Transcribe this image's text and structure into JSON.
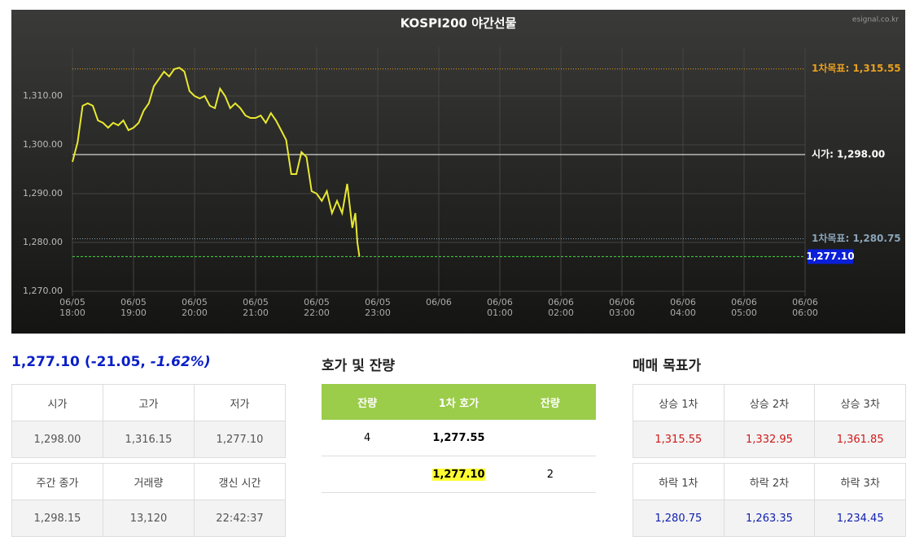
{
  "chart_data": {
    "type": "line",
    "title": "KOSPI200 야간선물",
    "brand": "esignal.co.kr",
    "x": [
      "06/05 18:00",
      "06/05 18:05",
      "06/05 18:10",
      "06/05 18:15",
      "06/05 18:20",
      "06/05 18:25",
      "06/05 18:30",
      "06/05 18:35",
      "06/05 18:40",
      "06/05 18:45",
      "06/05 18:50",
      "06/05 18:55",
      "06/05 19:00",
      "06/05 19:05",
      "06/05 19:10",
      "06/05 19:15",
      "06/05 19:20",
      "06/05 19:25",
      "06/05 19:30",
      "06/05 19:35",
      "06/05 19:40",
      "06/05 19:45",
      "06/05 19:50",
      "06/05 19:55",
      "06/05 20:00",
      "06/05 20:05",
      "06/05 20:10",
      "06/05 20:15",
      "06/05 20:20",
      "06/05 20:25",
      "06/05 20:30",
      "06/05 20:35",
      "06/05 20:40",
      "06/05 20:45",
      "06/05 20:50",
      "06/05 20:55",
      "06/05 21:00",
      "06/05 21:05",
      "06/05 21:10",
      "06/05 21:15",
      "06/05 21:20",
      "06/05 21:25",
      "06/05 21:30",
      "06/05 21:35",
      "06/05 21:40",
      "06/05 21:45",
      "06/05 21:50",
      "06/05 21:55",
      "06/05 22:00",
      "06/05 22:05",
      "06/05 22:10",
      "06/05 22:15",
      "06/05 22:20",
      "06/05 22:25",
      "06/05 22:30",
      "06/05 22:35",
      "06/05 22:38",
      "06/05 22:40",
      "06/05 22:42"
    ],
    "series": [
      {
        "color": "#e8e830",
        "values": [
          1296.5,
          1300.5,
          1308,
          1308.5,
          1308,
          1305,
          1304.5,
          1303.5,
          1304.5,
          1304,
          1305,
          1303,
          1303.5,
          1304.5,
          1307,
          1308.5,
          1312,
          1313.5,
          1315,
          1314,
          1315.5,
          1315.8,
          1315,
          1311,
          1310,
          1309.5,
          1310,
          1308,
          1307.5,
          1311.5,
          1310,
          1307.5,
          1308.5,
          1307.5,
          1306,
          1305.5,
          1305.5,
          1306,
          1304.5,
          1306.5,
          1305,
          1303,
          1301,
          1294,
          1294,
          1298.5,
          1297.5,
          1290.5,
          1290,
          1288.5,
          1290.5,
          1286,
          1288.5,
          1286,
          1292,
          1283,
          1286,
          1280,
          1277.1
        ]
      }
    ],
    "xlim": [
      "06/05 18:00",
      "06/06 06:00"
    ],
    "xticks": [
      "06/05 18:00",
      "06/05 19:00",
      "06/05 20:00",
      "06/05 21:00",
      "06/05 22:00",
      "06/05 23:00",
      "06/06 01:00",
      "06/06 02:00",
      "06/06 03:00",
      "06/06 04:00",
      "06/06 05:00",
      "06/06 06:00"
    ],
    "grid_xticks": [
      "06/06 00:00"
    ],
    "xtick_labels_extra": [
      "06/06"
    ],
    "ylim": [
      1270,
      1320
    ],
    "yticks": [
      {
        "value": 1270,
        "label": "1,270.00"
      },
      {
        "value": 1280,
        "label": "1,280.00"
      },
      {
        "value": 1290,
        "label": "1,290.00"
      },
      {
        "value": 1300,
        "label": "1,300.00"
      },
      {
        "value": 1310,
        "label": "1,310.00"
      }
    ],
    "grid": true,
    "reference_lines": [
      {
        "label": "1차목표: 1,315.55",
        "value": 1315.55,
        "color": "#e8a020",
        "style": "dotted"
      },
      {
        "label": "시가: 1,298.00",
        "value": 1298,
        "color": "#ffffff",
        "style": "solid"
      },
      {
        "label": "1차목표: 1,280.75",
        "value": 1280.75,
        "color": "#8aa4b8",
        "style": "dotted"
      },
      {
        "label": "1,277.10",
        "value": 1277.1,
        "color": "#44dd44",
        "style": "dashed",
        "box": "#0a1fd8"
      }
    ]
  },
  "quote": {
    "price": "1,277.10",
    "change": "(-21.05,",
    "pct": "-1.62%)"
  },
  "info": [
    {
      "headers": [
        "시가",
        "고가",
        "저가"
      ],
      "values": [
        "1,298.00",
        "1,316.15",
        "1,277.10"
      ]
    },
    {
      "headers": [
        "주간 종가",
        "거래량",
        "갱신 시간"
      ],
      "values": [
        "1,298.15",
        "13,120",
        "22:42:37"
      ]
    }
  ],
  "orderbook": {
    "title": "호가 및 잔량",
    "headers": [
      "잔량",
      "1차 호가",
      "잔량"
    ],
    "rows": [
      [
        "4",
        "1,277.55",
        null
      ],
      [
        null,
        "1,277.10",
        "2"
      ]
    ]
  },
  "targets": {
    "title": "매매 목표가",
    "up": {
      "headers": [
        "상승 1차",
        "상승 2차",
        "상승 3차"
      ],
      "values": [
        "1,315.55",
        "1,332.95",
        "1,361.85"
      ]
    },
    "down": {
      "headers": [
        "하락 1차",
        "하락 2차",
        "하락 3차"
      ],
      "values": [
        "1,280.75",
        "1,263.35",
        "1,234.45"
      ]
    }
  }
}
